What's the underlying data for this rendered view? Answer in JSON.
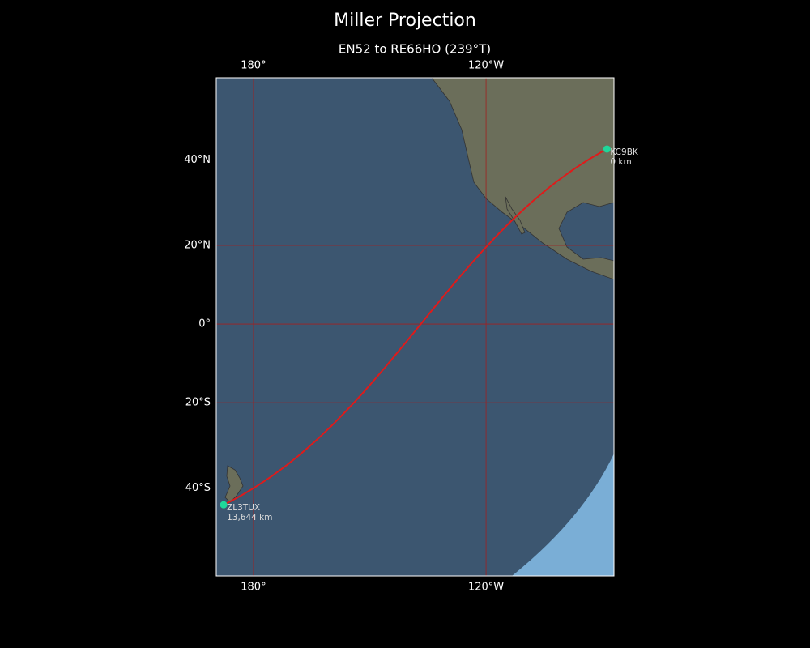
{
  "title": "Miller Projection",
  "subtitle": "EN52 to RE66HO (239°T)",
  "map": {
    "projection": "miller",
    "lon_range": [
      170.4,
      273
    ],
    "lat_range": [
      -57.5,
      56.5
    ],
    "lon_ticks": [
      {
        "value": 180,
        "label": "180°"
      },
      {
        "value": 240,
        "label": "120°W"
      }
    ],
    "lat_ticks": [
      {
        "value": 40,
        "label": "40°N"
      },
      {
        "value": 20,
        "label": "20°N"
      },
      {
        "value": 0,
        "label": "0°"
      },
      {
        "value": -20,
        "label": "20°S"
      },
      {
        "value": -40,
        "label": "40°S"
      }
    ],
    "grid_color": "#a02020",
    "path_color": "#e01a1a",
    "station_color": "#1fd79a",
    "stations": [
      {
        "call": "KC9BK",
        "distance": "0 km",
        "lon": -88.8,
        "lat": 42.4
      },
      {
        "call": "ZL3TUX",
        "distance": "13,644 km",
        "lon": 172.3,
        "lat": -43.6
      }
    ]
  }
}
